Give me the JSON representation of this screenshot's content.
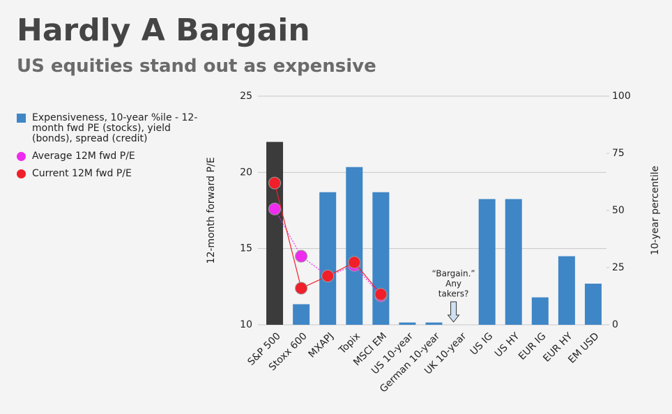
{
  "chart_data": {
    "type": "bar-line",
    "title": "Hardly A Bargain",
    "subtitle": "US equities stand out as expensive",
    "y_label": "12-month forward P/E",
    "y2_label": "10-year percentile",
    "categories": [
      "S&P 500",
      "Stoxx 600",
      "MXAPJ",
      "Topix",
      "MSCI EM",
      "US 10-year",
      "German 10-year",
      "UK 10-year",
      "US IG",
      "US HY",
      "EUR IG",
      "EUR HY",
      "EM USD"
    ],
    "ylim": [
      10,
      25
    ],
    "yticks": [
      10,
      15,
      20,
      25
    ],
    "y2lim": [
      0,
      100
    ],
    "y2ticks": [
      0,
      25,
      50,
      75,
      100
    ],
    "grid": true,
    "series": [
      {
        "name": "Expensiveness, 10-year %ile - 12-month fwd PE (stocks), yield (bonds), spread (credit)",
        "type": "bar",
        "axis": "y2",
        "color": "#3f86c6",
        "colors": [
          "#3b3b3b",
          "#3f86c6",
          "#3f86c6",
          "#3f86c6",
          "#3f86c6",
          "#3f86c6",
          "#3f86c6",
          "#3f86c6",
          "#3f86c6",
          "#3f86c6",
          "#3f86c6",
          "#3f86c6",
          "#3f86c6"
        ],
        "values": [
          80,
          9,
          58,
          69,
          58,
          1,
          1,
          0,
          55,
          55,
          12,
          30,
          18
        ]
      },
      {
        "name": "Average 12M fwd P/E",
        "type": "line",
        "color": "#ee2bee",
        "dash": true,
        "values": [
          17.6,
          14.5,
          13.2,
          13.9,
          11.9,
          null,
          null,
          null,
          null,
          null,
          null,
          null,
          null
        ]
      },
      {
        "name": "Current 12M fwd P/E",
        "type": "line",
        "color": "#f01f2a",
        "dash": false,
        "values": [
          19.3,
          12.4,
          13.2,
          14.1,
          12.0,
          null,
          null,
          null,
          null,
          null,
          null,
          null,
          null
        ]
      }
    ],
    "annotation": [
      "“Bargain.”",
      "Any",
      "takers?"
    ]
  }
}
